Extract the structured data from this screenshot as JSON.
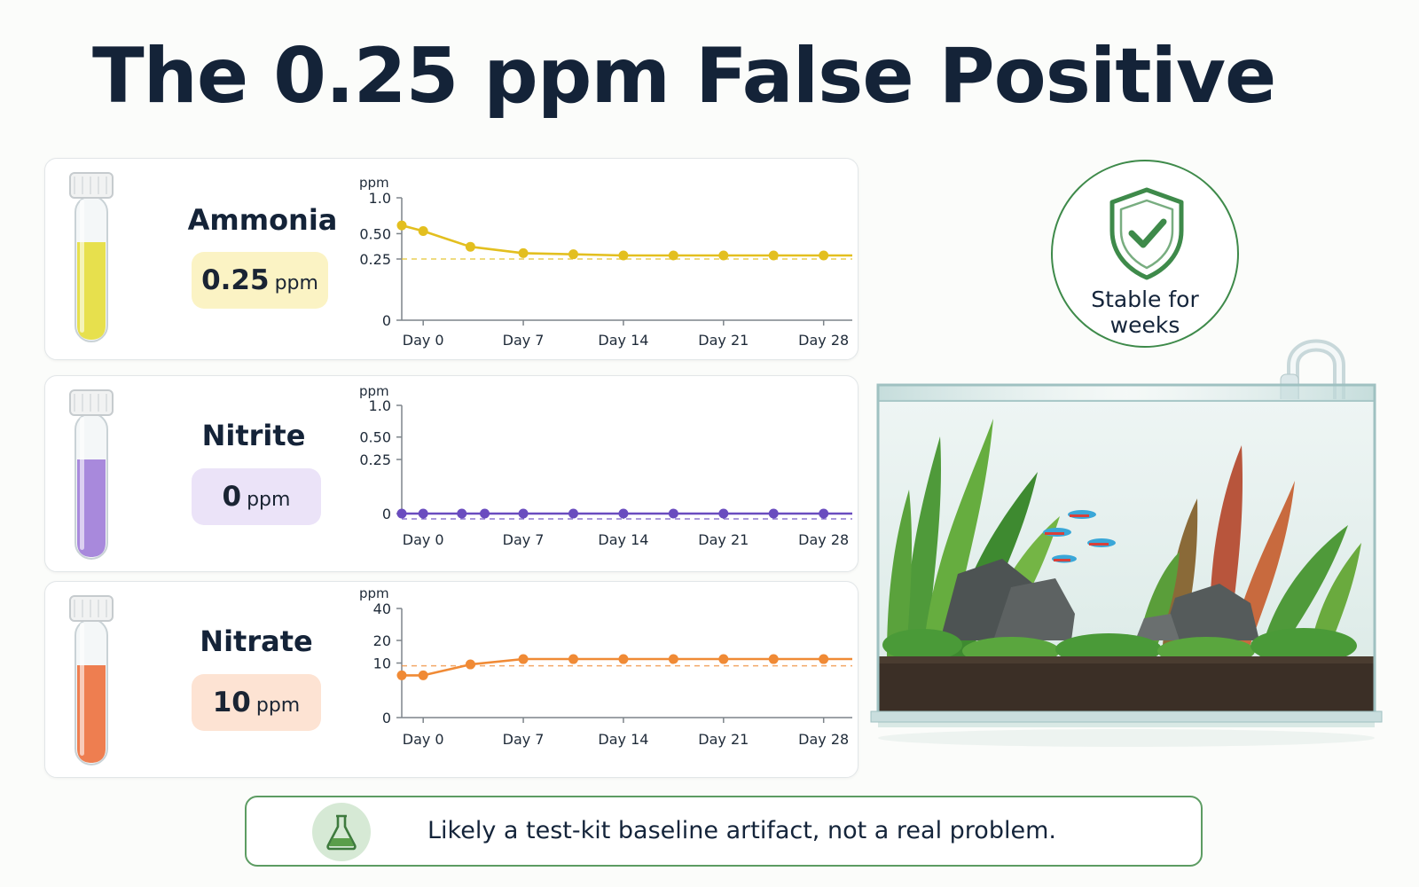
{
  "title": "The 0.25 ppm False Positive",
  "parameters": [
    {
      "name": "Ammonia",
      "value": "0.25",
      "unit": "ppm",
      "color": "#e3bf1f",
      "liquid": "#e7e04d",
      "pill_bg": "#fbf3c4"
    },
    {
      "name": "Nitrite",
      "value": "0",
      "unit": "ppm",
      "color": "#6a4cbf",
      "liquid": "#a889dc",
      "pill_bg": "#ebe3f8"
    },
    {
      "name": "Nitrate",
      "value": "10",
      "unit": "ppm",
      "color": "#f08a35",
      "liquid": "#ee7e50",
      "pill_bg": "#fde3d3"
    }
  ],
  "chart_data": [
    {
      "type": "line",
      "title": "Ammonia",
      "ylabel": "ppm",
      "x_tick_labels": [
        "Day 0",
        "Day 7",
        "Day 14",
        "Day 21",
        "Day 28"
      ],
      "x_tick_values": [
        0,
        7,
        14,
        21,
        28
      ],
      "y_tick_labels": [
        "1.0",
        "0.50",
        "0.25",
        "0"
      ],
      "y_tick_values": [
        1.0,
        0.5,
        0.25,
        0
      ],
      "ylim": [
        0,
        1.0
      ],
      "xlim": [
        -1.5,
        30.5
      ],
      "scale": "sqrt",
      "x": [
        -1.5,
        0,
        3.3,
        7,
        10.5,
        14,
        17.5,
        21,
        24.5,
        28,
        31
      ],
      "y": [
        0.6,
        0.53,
        0.36,
        0.3,
        0.29,
        0.28,
        0.28,
        0.28,
        0.28,
        0.28,
        0.28
      ],
      "reference_line": 0.25,
      "grid": false
    },
    {
      "type": "line",
      "title": "Nitrite",
      "ylabel": "ppm",
      "x_tick_labels": [
        "Day 0",
        "Day 7",
        "Day 14",
        "Day 21",
        "Day 28"
      ],
      "x_tick_values": [
        0,
        7,
        14,
        21,
        28
      ],
      "y_tick_labels": [
        "1.0",
        "0.50",
        "0.25",
        "0"
      ],
      "y_tick_values": [
        1.0,
        0.5,
        0.25,
        0
      ],
      "ylim": [
        0,
        1.0
      ],
      "xlim": [
        -1.5,
        30.5
      ],
      "scale": "sqrt",
      "x": [
        -1.5,
        0,
        2.7,
        4.3,
        7,
        10.5,
        14,
        17.5,
        21,
        24.5,
        28,
        31
      ],
      "y": [
        0,
        0,
        0,
        0,
        0,
        0,
        0,
        0,
        0,
        0,
        0,
        0
      ],
      "reference_line": 0,
      "grid": false
    },
    {
      "type": "line",
      "title": "Nitrate",
      "ylabel": "ppm",
      "x_tick_labels": [
        "Day 0",
        "Day 7",
        "Day 14",
        "Day 21",
        "Day 28"
      ],
      "x_tick_values": [
        0,
        7,
        14,
        21,
        28
      ],
      "y_tick_labels": [
        "40",
        "20",
        "10",
        "0"
      ],
      "y_tick_values": [
        40,
        20,
        10,
        0
      ],
      "ylim": [
        0,
        40
      ],
      "xlim": [
        -1.5,
        30.5
      ],
      "scale": "sqrt",
      "x": [
        -1.5,
        0,
        3.3,
        7,
        10.5,
        14,
        17.5,
        21,
        24.5,
        28,
        31
      ],
      "y": [
        6,
        6,
        9.5,
        11.5,
        11.5,
        11.5,
        11.5,
        11.5,
        11.5,
        11.5,
        11.5
      ],
      "reference_line": 9,
      "grid": false
    }
  ],
  "badge": {
    "text": "Stable for weeks",
    "color": "#3e8a4a",
    "icon": "shield-check-icon"
  },
  "footer": {
    "text": "Likely a test-kit baseline artifact, not a real problem.",
    "icon": "flask-icon"
  }
}
